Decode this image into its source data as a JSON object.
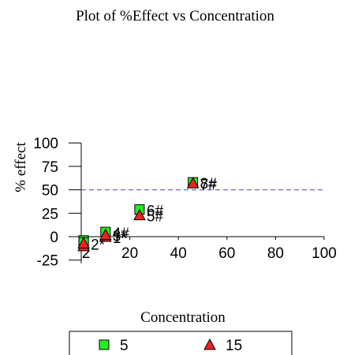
{
  "chart_data": {
    "type": "scatter",
    "title": "Plot of %Effect vs Concentration",
    "xlabel": "Concentration",
    "ylabel": "% effect",
    "xlim": [
      0,
      100
    ],
    "ylim": [
      -25,
      100
    ],
    "x_ticks": [
      "2",
      "20",
      "40",
      "60",
      "80",
      "100"
    ],
    "y_ticks": [
      "100",
      "75",
      "50",
      "25",
      "0",
      "-25"
    ],
    "reference_line": {
      "y": 50,
      "style": "dashed",
      "color": "#6b6bd6"
    },
    "series": [
      {
        "name": "5",
        "marker": "square",
        "color": "#22ee22",
        "points": [
          {
            "x": 1,
            "y": -4
          },
          {
            "x": 1,
            "y": -6
          },
          {
            "x": 10,
            "y": 5,
            "label": "4#"
          },
          {
            "x": 24,
            "y": 29,
            "label": "6#"
          },
          {
            "x": 46,
            "y": 58,
            "label": "8#"
          }
        ]
      },
      {
        "name": "15",
        "marker": "triangle",
        "color": "#ee2222",
        "points": [
          {
            "x": 1,
            "y": -10
          },
          {
            "x": 1,
            "y": -7,
            "label": "2*"
          },
          {
            "x": 10,
            "y": 0,
            "label": "1*"
          },
          {
            "x": 10,
            "y": 2,
            "label": "3*"
          },
          {
            "x": 24,
            "y": 23,
            "label": "5#"
          },
          {
            "x": 46,
            "y": 57,
            "label": "7#"
          }
        ]
      }
    ],
    "legend": {
      "position": "bottom",
      "items": [
        {
          "label": "5",
          "marker": "square",
          "color": "#22ee22"
        },
        {
          "label": "15",
          "marker": "triangle",
          "color": "#ee2222"
        }
      ]
    }
  }
}
